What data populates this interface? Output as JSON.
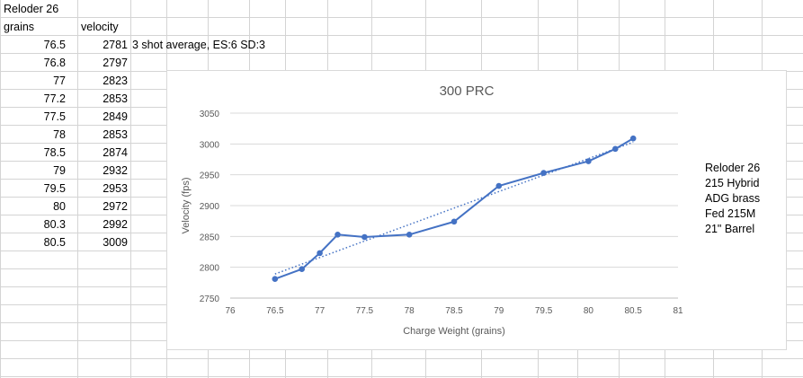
{
  "sheet": {
    "header_title": "Reloder 26",
    "col_a_header": "grains",
    "col_b_header": "velocity",
    "rows": [
      {
        "grains": "76.5",
        "velocity": "2781",
        "note": "3 shot average, ES:6 SD:3"
      },
      {
        "grains": "76.8",
        "velocity": "2797",
        "note": ""
      },
      {
        "grains": "77",
        "velocity": "2823",
        "note": ""
      },
      {
        "grains": "77.2",
        "velocity": "2853",
        "note": ""
      },
      {
        "grains": "77.5",
        "velocity": "2849",
        "note": ""
      },
      {
        "grains": "78",
        "velocity": "2853",
        "note": ""
      },
      {
        "grains": "78.5",
        "velocity": "2874",
        "note": ""
      },
      {
        "grains": "79",
        "velocity": "2932",
        "note": ""
      },
      {
        "grains": "79.5",
        "velocity": "2953",
        "note": ""
      },
      {
        "grains": "80",
        "velocity": "2972",
        "note": ""
      },
      {
        "grains": "80.3",
        "velocity": "2992",
        "note": ""
      },
      {
        "grains": "80.5",
        "velocity": "3009",
        "note": ""
      }
    ]
  },
  "chart_notes": [
    "Reloder 26",
    "215 Hybrid",
    "ADG brass",
    "Fed 215M",
    "21\" Barrel"
  ],
  "chart_data": {
    "type": "line",
    "title": "300 PRC",
    "xlabel": "Charge Weight (grains)",
    "ylabel": "Velocity (fps)",
    "xlim": [
      76,
      81
    ],
    "ylim": [
      2750,
      3050
    ],
    "x_ticks": [
      "76",
      "76.5",
      "77",
      "77.5",
      "78",
      "78.5",
      "79",
      "79.5",
      "80",
      "80.5",
      "81"
    ],
    "y_ticks": [
      "2750",
      "2800",
      "2850",
      "2900",
      "2950",
      "3000",
      "3050"
    ],
    "grid": true,
    "trendline": "linear, dotted",
    "series": [
      {
        "x": [
          76.5,
          76.8,
          77,
          77.2,
          77.5,
          78,
          78.5,
          79,
          79.5,
          80,
          80.3,
          80.5
        ],
        "y": [
          2781,
          2797,
          2823,
          2853,
          2849,
          2853,
          2874,
          2932,
          2953,
          2972,
          2992,
          3009
        ]
      }
    ],
    "colors": {
      "series": "#4472c4",
      "grid": "#d9d9d9",
      "axis_text": "#595959"
    }
  }
}
